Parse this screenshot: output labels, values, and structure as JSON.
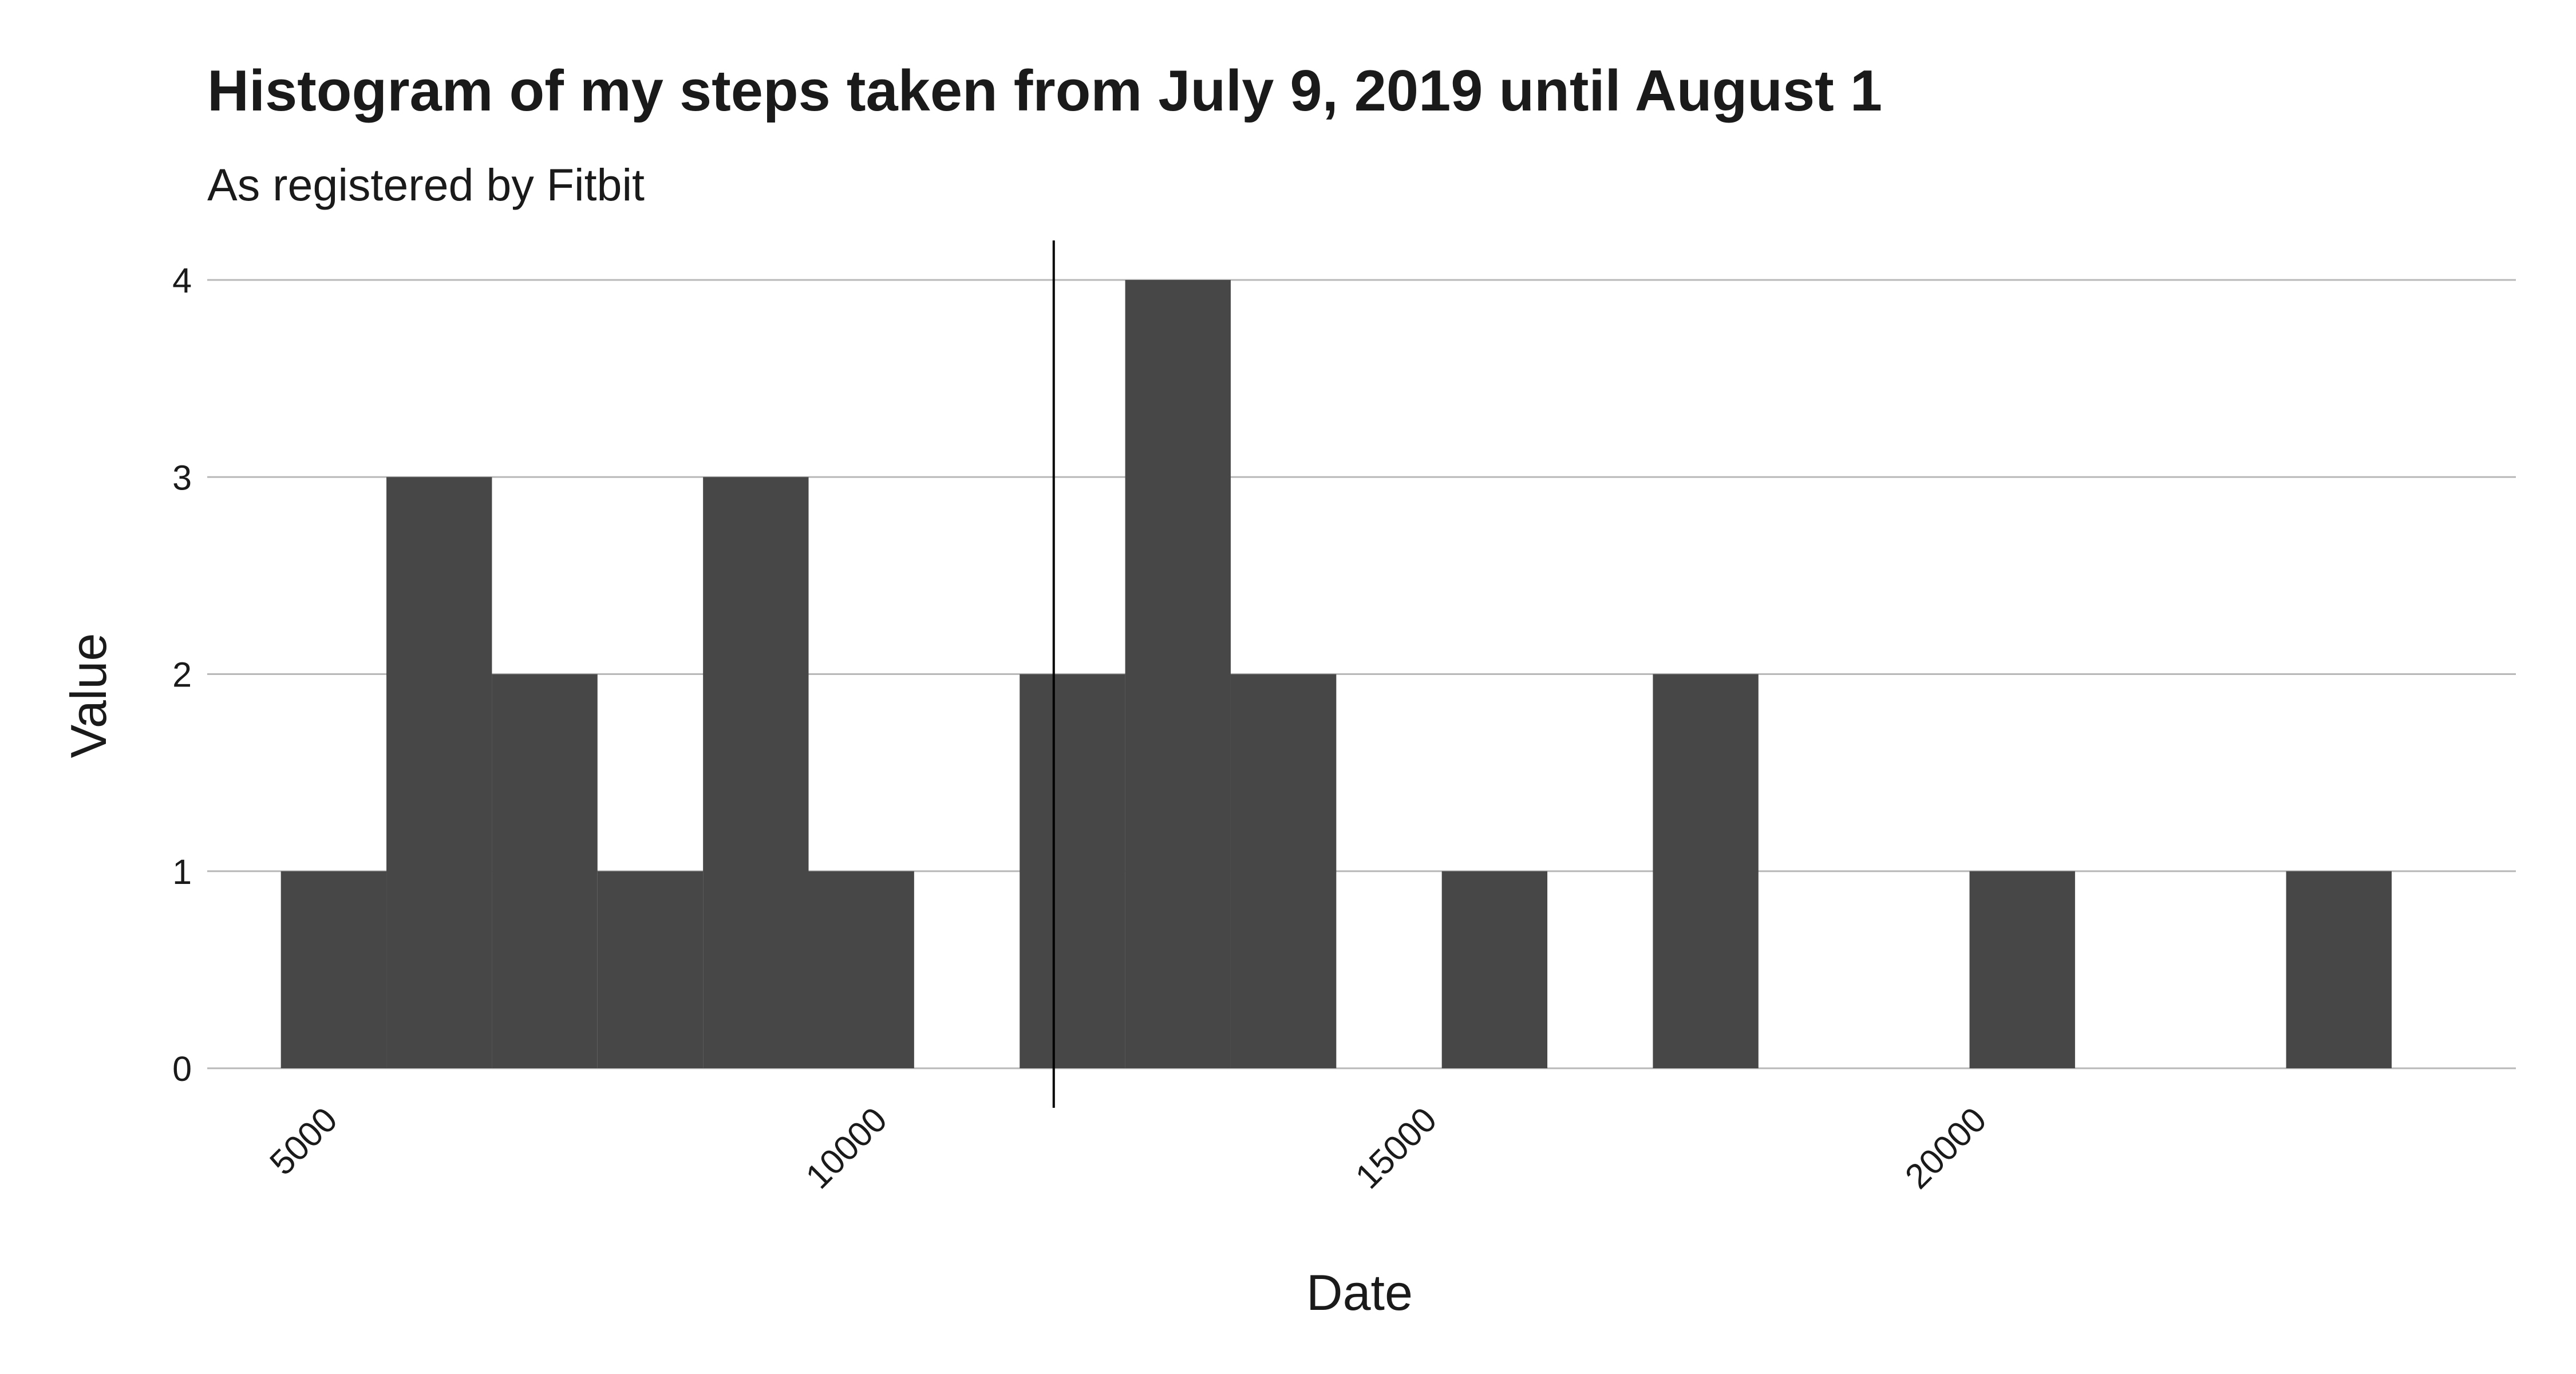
{
  "chart_data": {
    "type": "bar",
    "title": "Histogram of my steps taken from July 9, 2019 until August 1",
    "subtitle": "As registered by Fitbit",
    "xlabel": "Date",
    "ylabel": "Value",
    "xlim": [
      3850,
      24850
    ],
    "ylim": [
      0,
      4
    ],
    "x_ticks": [
      5000,
      10000,
      15000,
      20000
    ],
    "y_ticks": [
      0,
      1,
      2,
      3,
      4
    ],
    "bin_width": 960,
    "bins": [
      {
        "x": 5000,
        "count": 1
      },
      {
        "x": 5960,
        "count": 3
      },
      {
        "x": 6920,
        "count": 2
      },
      {
        "x": 7880,
        "count": 1
      },
      {
        "x": 8840,
        "count": 3
      },
      {
        "x": 9800,
        "count": 1
      },
      {
        "x": 10760,
        "count": 0
      },
      {
        "x": 11720,
        "count": 2
      },
      {
        "x": 12680,
        "count": 4
      },
      {
        "x": 13640,
        "count": 2
      },
      {
        "x": 14600,
        "count": 0
      },
      {
        "x": 15560,
        "count": 1
      },
      {
        "x": 16520,
        "count": 0
      },
      {
        "x": 17480,
        "count": 2
      },
      {
        "x": 18440,
        "count": 0
      },
      {
        "x": 19400,
        "count": 0
      },
      {
        "x": 20360,
        "count": 1
      },
      {
        "x": 21320,
        "count": 0
      },
      {
        "x": 22280,
        "count": 0
      },
      {
        "x": 23240,
        "count": 1
      }
    ],
    "reference_line_x": 11550,
    "grid": true,
    "colors": {
      "bar": "#474747",
      "grid": "#b8b8b8",
      "reference_line": "#000000",
      "text": "#1a1a1a"
    }
  }
}
